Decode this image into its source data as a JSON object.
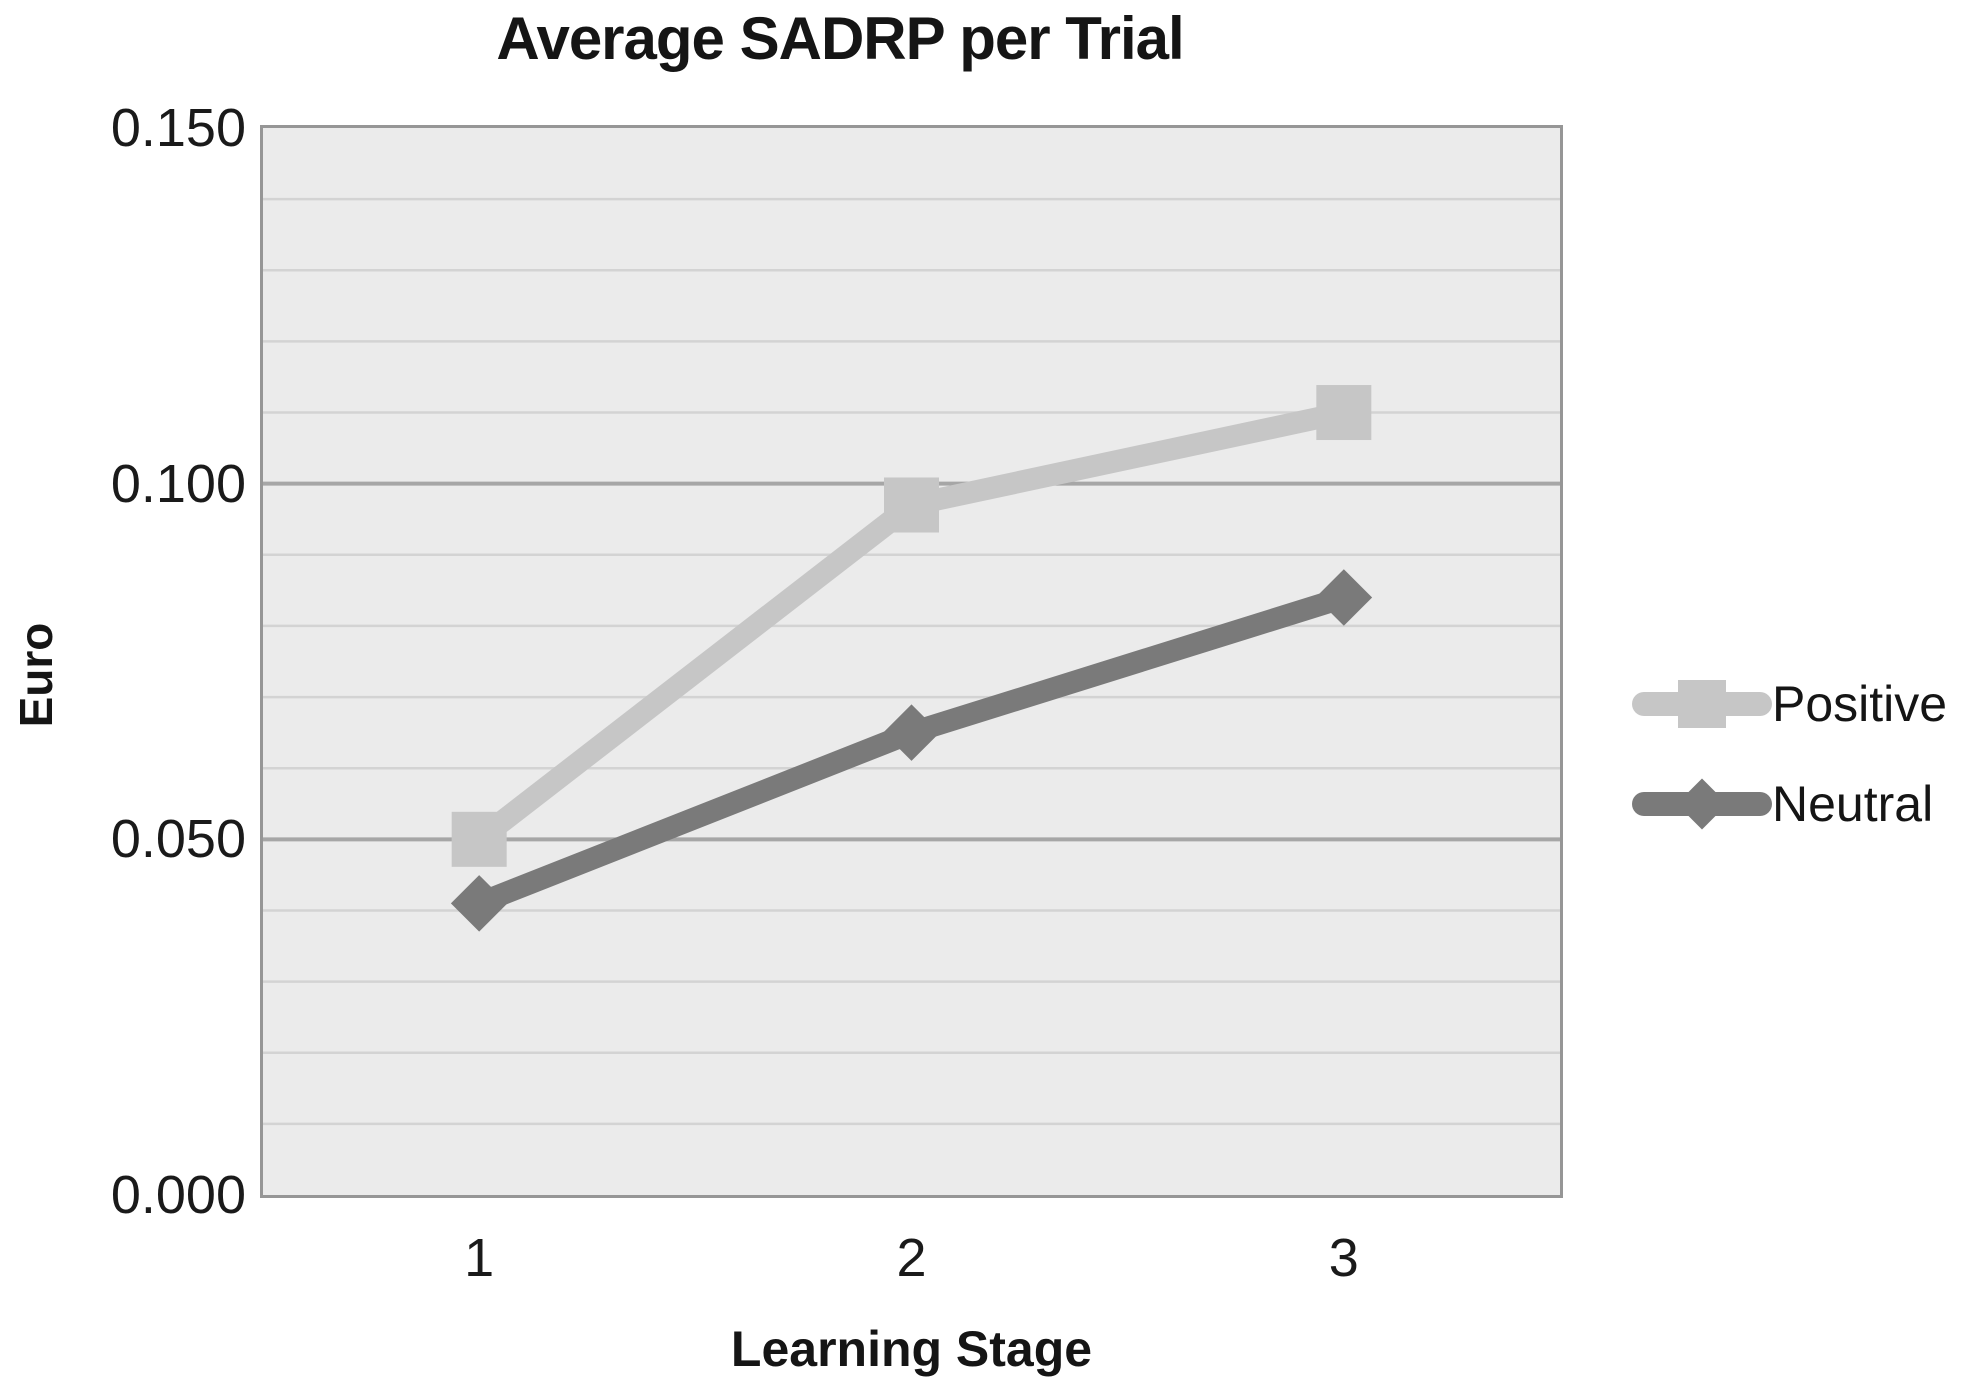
{
  "chart_data": {
    "type": "line",
    "title": "Average SADRP per Trial",
    "xlabel": "Learning Stage",
    "ylabel": "Euro",
    "categories": [
      "1",
      "2",
      "3"
    ],
    "series": [
      {
        "name": "Positive",
        "values": [
          0.05,
          0.097,
          0.11
        ],
        "color": "#c6c6c6",
        "marker": "square"
      },
      {
        "name": "Neutral",
        "values": [
          0.041,
          0.065,
          0.084
        ],
        "color": "#7a7a7a",
        "marker": "diamond"
      }
    ],
    "ylim": [
      0.0,
      0.15
    ],
    "yticks": [
      {
        "value": 0.15,
        "label": "0.150"
      },
      {
        "value": 0.1,
        "label": "0.100"
      },
      {
        "value": 0.05,
        "label": "0.050"
      },
      {
        "value": 0.0,
        "label": "0.000"
      }
    ],
    "minor_grid_step": 0.01,
    "grid": "on",
    "legend_position": "right",
    "colors": {
      "plot_background": "#ebebeb",
      "minor_gridline": "#d3d3d3",
      "major_gridline": "#a6a6a6",
      "plot_border": "#969696",
      "text": "#151515"
    }
  }
}
